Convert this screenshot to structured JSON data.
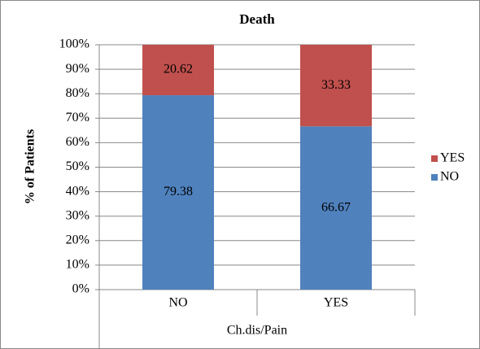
{
  "chart_data": {
    "type": "stacked_bar",
    "title": "Death",
    "x_label": "Ch.dis/Pain",
    "y_label": "% of Patients",
    "categories": [
      "NO",
      "YES"
    ],
    "series": [
      {
        "name": "NO",
        "color": "#4f81bd",
        "values": [
          79.38,
          66.67
        ]
      },
      {
        "name": "YES",
        "color": "#c0504d",
        "values": [
          20.62,
          33.33
        ]
      }
    ],
    "ylim": [
      0,
      100
    ],
    "yticks": [
      {
        "value": 0,
        "label": "0%"
      },
      {
        "value": 10,
        "label": "10%"
      },
      {
        "value": 20,
        "label": "20%"
      },
      {
        "value": 30,
        "label": "30%"
      },
      {
        "value": 40,
        "label": "40%"
      },
      {
        "value": 50,
        "label": "50%"
      },
      {
        "value": 60,
        "label": "60%"
      },
      {
        "value": 70,
        "label": "70%"
      },
      {
        "value": 80,
        "label": "80%"
      },
      {
        "value": 90,
        "label": "90%"
      },
      {
        "value": 100,
        "label": "100%"
      }
    ],
    "grid": true,
    "legend": "right"
  }
}
